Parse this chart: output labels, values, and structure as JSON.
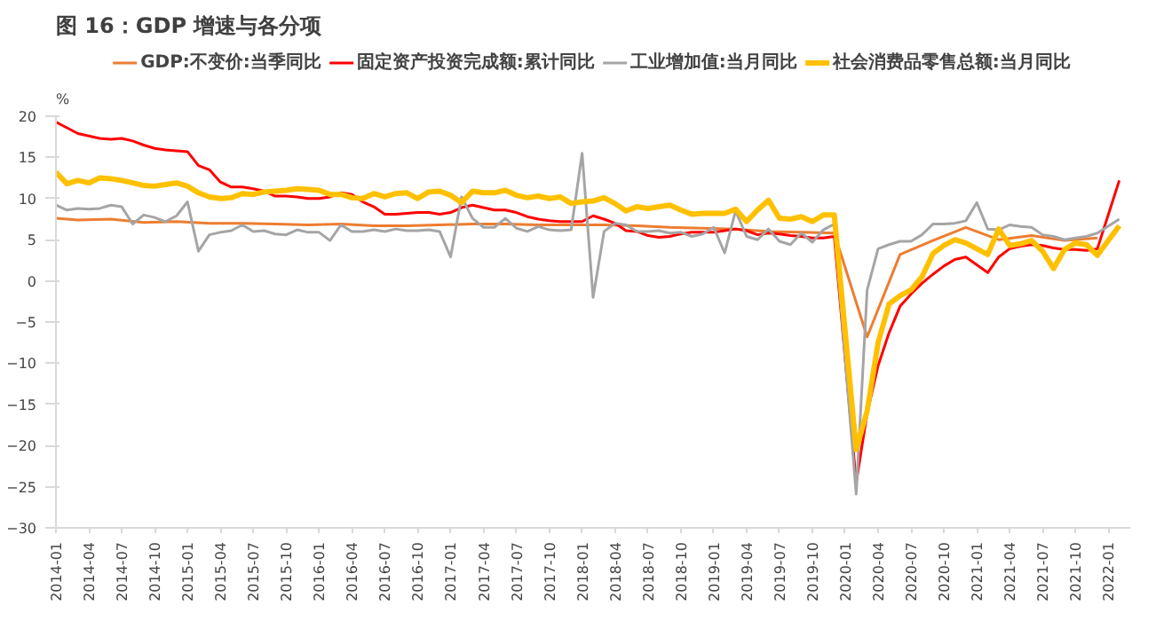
{
  "chart_data": {
    "type": "line",
    "title": "图 16：GDP 增速与各分项",
    "ylabel": "%",
    "xlim": [
      "2014-01",
      "2022-03"
    ],
    "ylim": [
      -30,
      20
    ],
    "yticks": [
      -30,
      -25,
      -20,
      -15,
      -10,
      -5,
      0,
      5,
      10,
      15,
      20
    ],
    "xticks": [
      "2014-01",
      "2014-04",
      "2014-07",
      "2014-10",
      "2015-01",
      "2015-04",
      "2015-07",
      "2015-10",
      "2016-01",
      "2016-04",
      "2016-07",
      "2016-10",
      "2017-01",
      "2017-04",
      "2017-07",
      "2017-10",
      "2018-01",
      "2018-04",
      "2018-07",
      "2018-10",
      "2019-01",
      "2019-04",
      "2019-07",
      "2019-10",
      "2020-01",
      "2020-04",
      "2020-07",
      "2020-10",
      "2021-01",
      "2021-04",
      "2021-07",
      "2021-10",
      "2022-01"
    ],
    "grid": false,
    "legend": "top",
    "line_style": "solid",
    "marker": "none",
    "series": [
      {
        "name": "GDP:不变价:当季同比",
        "color": "#ed7d31",
        "x": [
          "2014-01",
          "2014-03",
          "2014-06",
          "2014-09",
          "2014-12",
          "2015-03",
          "2015-06",
          "2015-09",
          "2015-12",
          "2016-03",
          "2016-06",
          "2016-09",
          "2016-12",
          "2017-03",
          "2017-06",
          "2017-09",
          "2017-12",
          "2018-03",
          "2018-06",
          "2018-09",
          "2018-12",
          "2019-03",
          "2019-06",
          "2019-09",
          "2019-12",
          "2020-03",
          "2020-06",
          "2020-09",
          "2020-12",
          "2021-03",
          "2021-06",
          "2021-09",
          "2021-12"
        ],
        "values": [
          7.6,
          7.4,
          7.5,
          7.1,
          7.2,
          7.0,
          7.0,
          6.9,
          6.8,
          6.9,
          6.7,
          6.7,
          6.8,
          6.9,
          6.9,
          6.8,
          6.8,
          6.8,
          6.7,
          6.5,
          6.4,
          6.3,
          6.0,
          5.9,
          5.8,
          -6.8,
          3.2,
          4.9,
          6.5,
          5.0,
          5.5,
          4.9,
          5.2
        ]
      },
      {
        "name": "固定资产投资完成额:累计同比",
        "color": "#ff0000",
        "x": [
          "2014-01",
          "2014-02",
          "2014-03",
          "2014-04",
          "2014-05",
          "2014-06",
          "2014-07",
          "2014-08",
          "2014-09",
          "2014-10",
          "2014-11",
          "2014-12",
          "2015-01",
          "2015-02",
          "2015-03",
          "2015-04",
          "2015-05",
          "2015-06",
          "2015-07",
          "2015-08",
          "2015-09",
          "2015-10",
          "2015-11",
          "2015-12",
          "2016-01",
          "2016-02",
          "2016-03",
          "2016-04",
          "2016-05",
          "2016-06",
          "2016-07",
          "2016-08",
          "2016-09",
          "2016-10",
          "2016-11",
          "2016-12",
          "2017-01",
          "2017-02",
          "2017-03",
          "2017-04",
          "2017-05",
          "2017-06",
          "2017-07",
          "2017-08",
          "2017-09",
          "2017-10",
          "2017-11",
          "2017-12",
          "2018-01",
          "2018-02",
          "2018-03",
          "2018-04",
          "2018-05",
          "2018-06",
          "2018-07",
          "2018-08",
          "2018-09",
          "2018-10",
          "2018-11",
          "2018-12",
          "2019-01",
          "2019-02",
          "2019-03",
          "2019-04",
          "2019-05",
          "2019-06",
          "2019-07",
          "2019-08",
          "2019-09",
          "2019-10",
          "2019-11",
          "2019-12",
          "2020-02",
          "2020-03",
          "2020-04",
          "2020-05",
          "2020-06",
          "2020-07",
          "2020-08",
          "2020-09",
          "2020-10",
          "2020-11",
          "2020-12",
          "2021-02",
          "2021-03",
          "2021-04",
          "2021-05",
          "2021-06",
          "2021-07",
          "2021-08",
          "2021-09",
          "2021-10",
          "2021-11",
          "2021-12",
          "2022-02"
        ],
        "values": [
          19.3,
          18.6,
          17.9,
          17.6,
          17.3,
          17.2,
          17.3,
          17.0,
          16.5,
          16.1,
          15.9,
          15.8,
          15.7,
          14.0,
          13.5,
          12.0,
          11.4,
          11.4,
          11.2,
          10.9,
          10.3,
          10.3,
          10.2,
          10.0,
          10.0,
          10.2,
          10.7,
          10.5,
          9.6,
          9.0,
          8.1,
          8.1,
          8.2,
          8.3,
          8.3,
          8.1,
          8.3,
          8.9,
          9.2,
          8.9,
          8.6,
          8.6,
          8.3,
          7.8,
          7.5,
          7.3,
          7.2,
          7.2,
          7.2,
          7.9,
          7.5,
          7.0,
          6.1,
          6.0,
          5.5,
          5.3,
          5.4,
          5.7,
          5.9,
          5.9,
          5.9,
          6.1,
          6.3,
          6.1,
          5.6,
          5.8,
          5.7,
          5.5,
          5.4,
          5.2,
          5.2,
          5.4,
          -24.5,
          -16.1,
          -10.3,
          -6.3,
          -3.1,
          -1.6,
          -0.3,
          0.8,
          1.8,
          2.6,
          2.9,
          1.0,
          2.9,
          3.9,
          4.2,
          4.4,
          4.3,
          4.0,
          3.8,
          3.8,
          3.7,
          3.9,
          12.2
        ]
      },
      {
        "name": "工业增加值:当月同比",
        "color": "#a5a5a5",
        "x": [
          "2014-01",
          "2014-02",
          "2014-03",
          "2014-04",
          "2014-05",
          "2014-06",
          "2014-07",
          "2014-08",
          "2014-09",
          "2014-10",
          "2014-11",
          "2014-12",
          "2015-01",
          "2015-02",
          "2015-03",
          "2015-04",
          "2015-05",
          "2015-06",
          "2015-07",
          "2015-08",
          "2015-09",
          "2015-10",
          "2015-11",
          "2015-12",
          "2016-01",
          "2016-02",
          "2016-03",
          "2016-04",
          "2016-05",
          "2016-06",
          "2016-07",
          "2016-08",
          "2016-09",
          "2016-10",
          "2016-11",
          "2016-12",
          "2017-01",
          "2017-02",
          "2017-03",
          "2017-04",
          "2017-05",
          "2017-06",
          "2017-07",
          "2017-08",
          "2017-09",
          "2017-10",
          "2017-11",
          "2017-12",
          "2018-01",
          "2018-02",
          "2018-03",
          "2018-04",
          "2018-05",
          "2018-06",
          "2018-07",
          "2018-08",
          "2018-09",
          "2018-10",
          "2018-11",
          "2018-12",
          "2019-01",
          "2019-02",
          "2019-03",
          "2019-04",
          "2019-05",
          "2019-06",
          "2019-07",
          "2019-08",
          "2019-09",
          "2019-10",
          "2019-11",
          "2019-12",
          "2020-02",
          "2020-03",
          "2020-04",
          "2020-05",
          "2020-06",
          "2020-07",
          "2020-08",
          "2020-09",
          "2020-10",
          "2020-11",
          "2020-12",
          "2021-01",
          "2021-02",
          "2021-03",
          "2021-04",
          "2021-05",
          "2021-06",
          "2021-07",
          "2021-08",
          "2021-09",
          "2021-10",
          "2021-11",
          "2021-12",
          "2022-02"
        ],
        "values": [
          9.2,
          8.6,
          8.8,
          8.7,
          8.8,
          9.2,
          9.0,
          6.9,
          8.0,
          7.7,
          7.2,
          7.9,
          9.6,
          3.6,
          5.6,
          5.9,
          6.1,
          6.8,
          6.0,
          6.1,
          5.7,
          5.6,
          6.2,
          5.9,
          5.9,
          4.9,
          6.8,
          6.0,
          6.0,
          6.2,
          6.0,
          6.3,
          6.1,
          6.1,
          6.2,
          6.0,
          2.9,
          10.2,
          7.6,
          6.5,
          6.5,
          7.6,
          6.4,
          6.0,
          6.6,
          6.2,
          6.1,
          6.2,
          15.5,
          -2.0,
          6.0,
          7.0,
          6.8,
          6.0,
          6.0,
          6.1,
          5.8,
          5.9,
          5.4,
          5.7,
          6.5,
          3.4,
          8.5,
          5.4,
          5.0,
          6.3,
          4.8,
          4.4,
          5.8,
          4.7,
          6.2,
          6.9,
          -25.9,
          -1.1,
          3.9,
          4.4,
          4.8,
          4.8,
          5.6,
          6.9,
          6.9,
          7.0,
          7.3,
          9.5,
          6.3,
          6.2,
          6.8,
          6.6,
          6.5,
          5.6,
          5.4,
          5.0,
          5.2,
          5.4,
          5.8,
          7.5
        ]
      },
      {
        "name": "社会消费品零售总额:当月同比",
        "color": "#ffc000",
        "x": [
          "2014-01",
          "2014-02",
          "2014-03",
          "2014-04",
          "2014-05",
          "2014-06",
          "2014-07",
          "2014-08",
          "2014-09",
          "2014-10",
          "2014-11",
          "2014-12",
          "2015-01",
          "2015-02",
          "2015-03",
          "2015-04",
          "2015-05",
          "2015-06",
          "2015-07",
          "2015-08",
          "2015-09",
          "2015-10",
          "2015-11",
          "2015-12",
          "2016-01",
          "2016-02",
          "2016-03",
          "2016-04",
          "2016-05",
          "2016-06",
          "2016-07",
          "2016-08",
          "2016-09",
          "2016-10",
          "2016-11",
          "2016-12",
          "2017-01",
          "2017-02",
          "2017-03",
          "2017-04",
          "2017-05",
          "2017-06",
          "2017-07",
          "2017-08",
          "2017-09",
          "2017-10",
          "2017-11",
          "2017-12",
          "2018-01",
          "2018-02",
          "2018-03",
          "2018-04",
          "2018-05",
          "2018-06",
          "2018-07",
          "2018-08",
          "2018-09",
          "2018-10",
          "2018-11",
          "2018-12",
          "2019-01",
          "2019-02",
          "2019-03",
          "2019-04",
          "2019-05",
          "2019-06",
          "2019-07",
          "2019-08",
          "2019-09",
          "2019-10",
          "2019-11",
          "2019-12",
          "2020-02",
          "2020-03",
          "2020-04",
          "2020-05",
          "2020-06",
          "2020-07",
          "2020-08",
          "2020-09",
          "2020-10",
          "2020-11",
          "2020-12",
          "2021-02",
          "2021-03",
          "2021-04",
          "2021-05",
          "2021-06",
          "2021-07",
          "2021-08",
          "2021-09",
          "2021-10",
          "2021-11",
          "2021-12",
          "2022-02"
        ],
        "values": [
          13.2,
          11.8,
          12.2,
          11.9,
          12.5,
          12.4,
          12.2,
          11.9,
          11.6,
          11.5,
          11.7,
          11.9,
          11.5,
          10.7,
          10.2,
          10.0,
          10.1,
          10.6,
          10.5,
          10.8,
          10.9,
          11.0,
          11.2,
          11.1,
          11.0,
          10.5,
          10.5,
          10.1,
          10.0,
          10.6,
          10.2,
          10.6,
          10.7,
          10.0,
          10.8,
          10.9,
          10.4,
          9.5,
          10.9,
          10.7,
          10.7,
          11.0,
          10.4,
          10.1,
          10.3,
          10.0,
          10.2,
          9.4,
          9.6,
          9.7,
          10.1,
          9.4,
          8.5,
          9.0,
          8.8,
          9.0,
          9.2,
          8.6,
          8.1,
          8.2,
          8.2,
          8.2,
          8.7,
          7.2,
          8.6,
          9.8,
          7.6,
          7.5,
          7.8,
          7.2,
          8.0,
          8.0,
          -20.5,
          -15.8,
          -7.5,
          -2.8,
          -1.8,
          -1.1,
          0.5,
          3.3,
          4.3,
          5.0,
          4.6,
          3.2,
          6.3,
          4.3,
          4.5,
          4.9,
          3.6,
          1.5,
          3.8,
          4.6,
          4.4,
          3.1,
          6.7
        ]
      }
    ]
  }
}
